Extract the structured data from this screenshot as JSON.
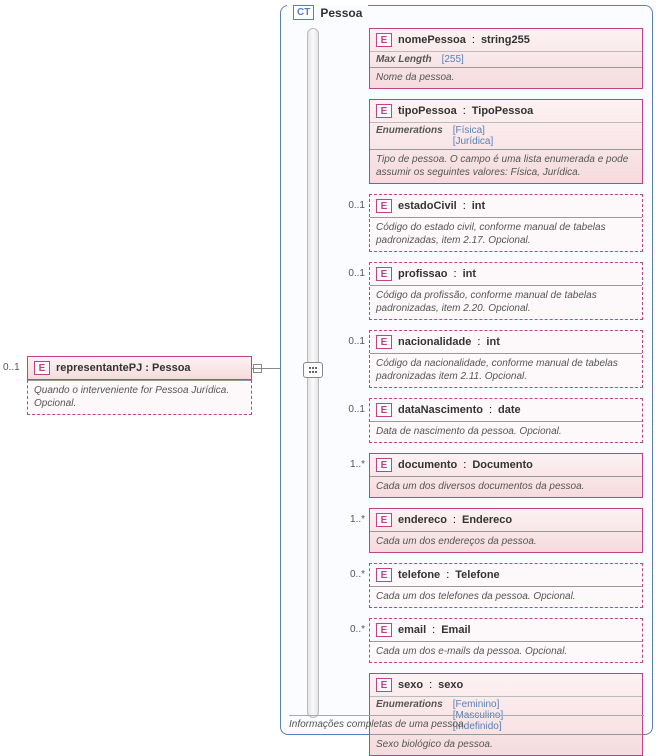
{
  "root": {
    "occurrence": "0..1",
    "name": "representantePJ",
    "type": "Pessoa",
    "description": "Quando o interveniente for Pessoa Jurídica. Opcional."
  },
  "complexType": {
    "badge": "CT",
    "name": "Pessoa",
    "footer": "Informações completas de uma pessoa."
  },
  "labels": {
    "maxLength": "Max Length",
    "enumerations": "Enumerations",
    "elementBadge": "E"
  },
  "elements": [
    {
      "cardinality": "",
      "optional": false,
      "name": "nomePessoa",
      "type": "string255",
      "meta": {
        "kind": "maxlength",
        "value": "[255]"
      },
      "description": "Nome da pessoa."
    },
    {
      "cardinality": "",
      "optional": false,
      "name": "tipoPessoa",
      "type": "TipoPessoa",
      "meta": {
        "kind": "enum",
        "values": [
          "[Física]",
          "[Jurídica]"
        ]
      },
      "description": "Tipo de pessoa. O campo é uma lista enumerada e pode assumir os seguintes valores: Física, Jurídica."
    },
    {
      "cardinality": "0..1",
      "optional": true,
      "name": "estadoCivil",
      "type": "int",
      "description": "Código do estado civil, conforme manual de tabelas padronizadas, item 2.17. Opcional."
    },
    {
      "cardinality": "0..1",
      "optional": true,
      "name": "profissao",
      "type": "int",
      "description": "Código da profissão, conforme manual de tabelas padronizadas, item 2.20. Opcional."
    },
    {
      "cardinality": "0..1",
      "optional": true,
      "name": "nacionalidade",
      "type": "int",
      "description": "Código da nacionalidade, conforme manual de tabelas padronizadas item 2.11. Opcional."
    },
    {
      "cardinality": "0..1",
      "optional": true,
      "name": "dataNascimento",
      "type": "date",
      "description": "Data de nascimento da pessoa. Opcional."
    },
    {
      "cardinality": "1..*",
      "optional": false,
      "name": "documento",
      "type": "Documento",
      "description": "Cada um dos diversos documentos da pessoa."
    },
    {
      "cardinality": "1..*",
      "optional": false,
      "name": "endereco",
      "type": "Endereco",
      "description": "Cada um dos endereços da pessoa."
    },
    {
      "cardinality": "0..*",
      "optional": true,
      "name": "telefone",
      "type": "Telefone",
      "description": "Cada um dos telefones da pessoa. Opcional."
    },
    {
      "cardinality": "0..*",
      "optional": true,
      "name": "email",
      "type": "Email",
      "description": "Cada um dos e-mails da pessoa. Opcional."
    },
    {
      "cardinality": "",
      "optional": false,
      "name": "sexo",
      "type": "sexo",
      "meta": {
        "kind": "enum",
        "values": [
          "[Feminino]",
          "[Masculino]",
          "[Indefinido]"
        ]
      },
      "description": "Sexo biológico da pessoa."
    }
  ],
  "colors": {
    "elementBorder": "#c0428b",
    "ctBorder": "#5b7fb5",
    "bgGradientTop": "#fdf2f3",
    "bgGradientBottom": "#f5dbde"
  }
}
